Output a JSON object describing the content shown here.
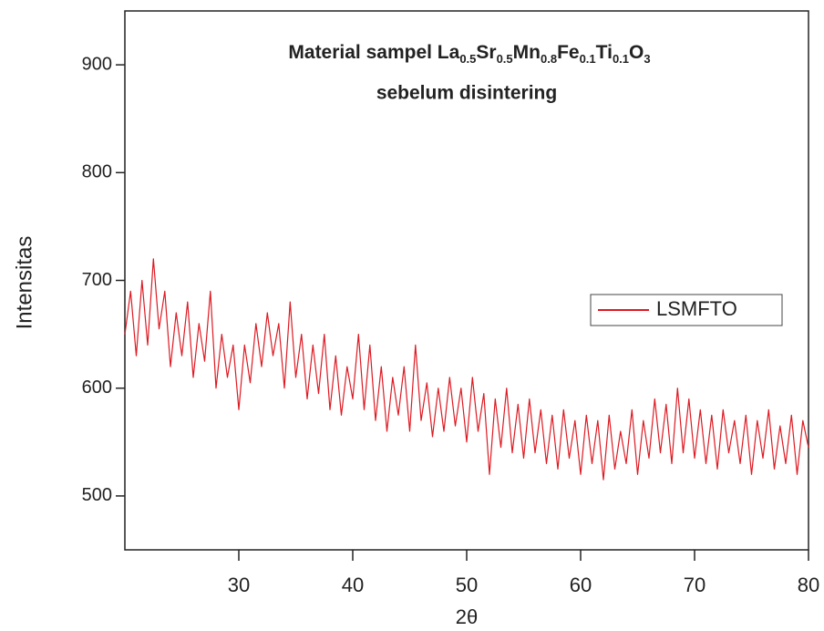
{
  "chart_data": {
    "type": "line",
    "title_parts": [
      "Material sampel La",
      "0.5",
      "Sr",
      "0.5",
      "Mn",
      "0.8",
      "Fe",
      "0.1",
      "Ti",
      "0.1",
      "O",
      "3"
    ],
    "subtitle": "sebelum disintering",
    "x_label": "2θ",
    "y_label": "Intensitas",
    "xlim": [
      20,
      80
    ],
    "ylim": [
      450,
      950
    ],
    "xticks": [
      30,
      40,
      50,
      60,
      70,
      80
    ],
    "yticks": [
      500,
      600,
      700,
      800,
      900
    ],
    "legend": "right",
    "x": [
      20,
      20.5,
      21,
      21.5,
      22,
      22.5,
      23,
      23.5,
      24,
      24.5,
      25,
      25.5,
      26,
      26.5,
      27,
      27.5,
      28,
      28.5,
      29,
      29.5,
      30,
      30.5,
      31,
      31.5,
      32,
      32.5,
      33,
      33.5,
      34,
      34.5,
      35,
      35.5,
      36,
      36.5,
      37,
      37.5,
      38,
      38.5,
      39,
      39.5,
      40,
      40.5,
      41,
      41.5,
      42,
      42.5,
      43,
      43.5,
      44,
      44.5,
      45,
      45.5,
      46,
      46.5,
      47,
      47.5,
      48,
      48.5,
      49,
      49.5,
      50,
      50.5,
      51,
      51.5,
      52,
      52.5,
      53,
      53.5,
      54,
      54.5,
      55,
      55.5,
      56,
      56.5,
      57,
      57.5,
      58,
      58.5,
      59,
      59.5,
      60,
      60.5,
      61,
      61.5,
      62,
      62.5,
      63,
      63.5,
      64,
      64.5,
      65,
      65.5,
      66,
      66.5,
      67,
      67.5,
      68,
      68.5,
      69,
      69.5,
      70,
      70.5,
      71,
      71.5,
      72,
      72.5,
      73,
      73.5,
      74,
      74.5,
      75,
      75.5,
      76,
      76.5,
      77,
      77.5,
      78,
      78.5,
      79,
      79.5,
      80
    ],
    "series": [
      {
        "name": "LSMFTO",
        "color": "#dd1a22",
        "values": [
          650,
          690,
          630,
          700,
          640,
          720,
          655,
          690,
          620,
          670,
          630,
          680,
          610,
          660,
          625,
          690,
          600,
          650,
          610,
          640,
          580,
          640,
          605,
          660,
          620,
          670,
          630,
          660,
          600,
          680,
          610,
          650,
          590,
          640,
          595,
          650,
          580,
          630,
          575,
          620,
          590,
          650,
          580,
          640,
          570,
          620,
          560,
          610,
          575,
          620,
          560,
          640,
          570,
          605,
          555,
          600,
          560,
          610,
          565,
          600,
          550,
          610,
          560,
          595,
          520,
          590,
          545,
          600,
          540,
          585,
          535,
          590,
          540,
          580,
          530,
          575,
          525,
          580,
          535,
          570,
          520,
          575,
          530,
          570,
          515,
          575,
          525,
          560,
          530,
          580,
          520,
          570,
          535,
          590,
          540,
          585,
          530,
          600,
          540,
          590,
          535,
          580,
          530,
          575,
          525,
          580,
          540,
          570,
          530,
          575,
          520,
          570,
          535,
          580,
          525,
          565,
          530,
          575,
          520,
          570,
          545
        ]
      }
    ]
  }
}
